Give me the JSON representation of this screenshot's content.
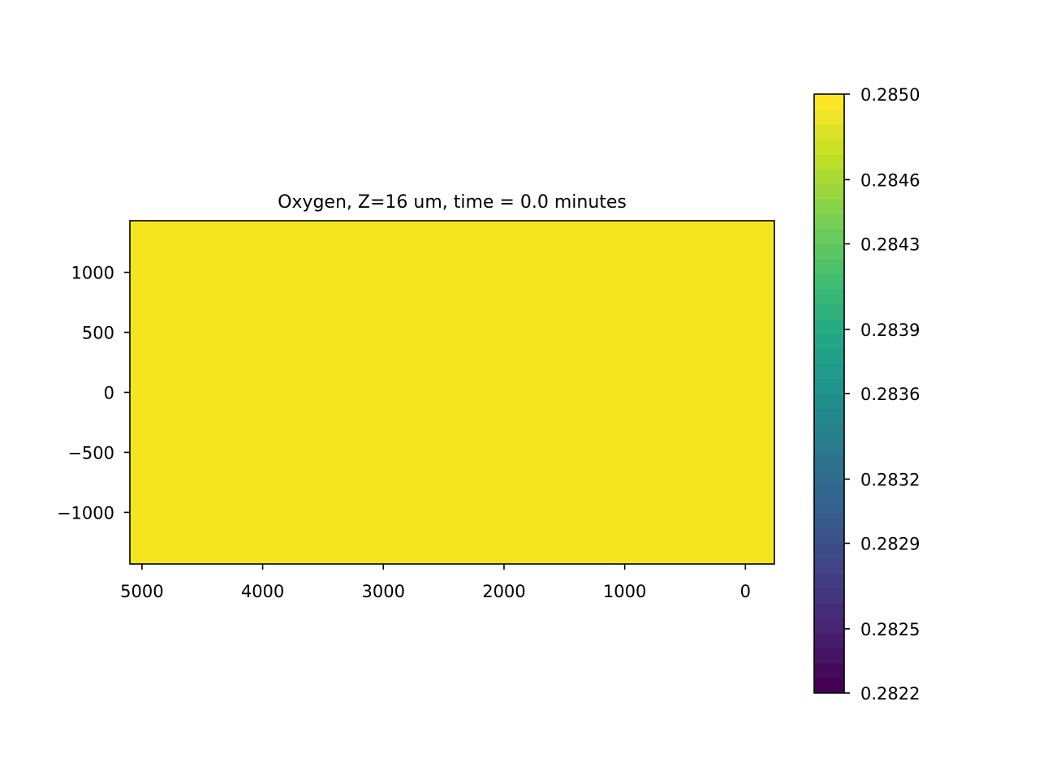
{
  "chart_data": {
    "type": "heatmap",
    "title": "Oxygen, Z=16 um, time = 0.0 minutes",
    "xlabel": "",
    "ylabel": "",
    "xlim": [
      5100,
      -240
    ],
    "ylim": [
      -1430,
      1430
    ],
    "x_ticks": [
      5000,
      4000,
      3000,
      2000,
      1000,
      0
    ],
    "x_tick_labels": [
      "5000",
      "4000",
      "3000",
      "2000",
      "1000",
      "0"
    ],
    "y_ticks": [
      1000,
      500,
      0,
      -500,
      -1000
    ],
    "y_tick_labels": [
      "1000",
      "500",
      "0",
      "−500",
      "−1000"
    ],
    "field_value": 0.285,
    "field_color": "#f4e61e",
    "colormap": "viridis",
    "colorbar": {
      "vmin": 0.2822,
      "vmax": 0.285,
      "ticks": [
        0.2822,
        0.2825,
        0.2829,
        0.2832,
        0.2836,
        0.2839,
        0.2843,
        0.2846,
        0.285
      ],
      "tick_labels": [
        "0.2822",
        "0.2825",
        "0.2829",
        "0.2832",
        "0.2836",
        "0.2839",
        "0.2843",
        "0.2846",
        "0.2850"
      ],
      "levels": 40
    }
  }
}
